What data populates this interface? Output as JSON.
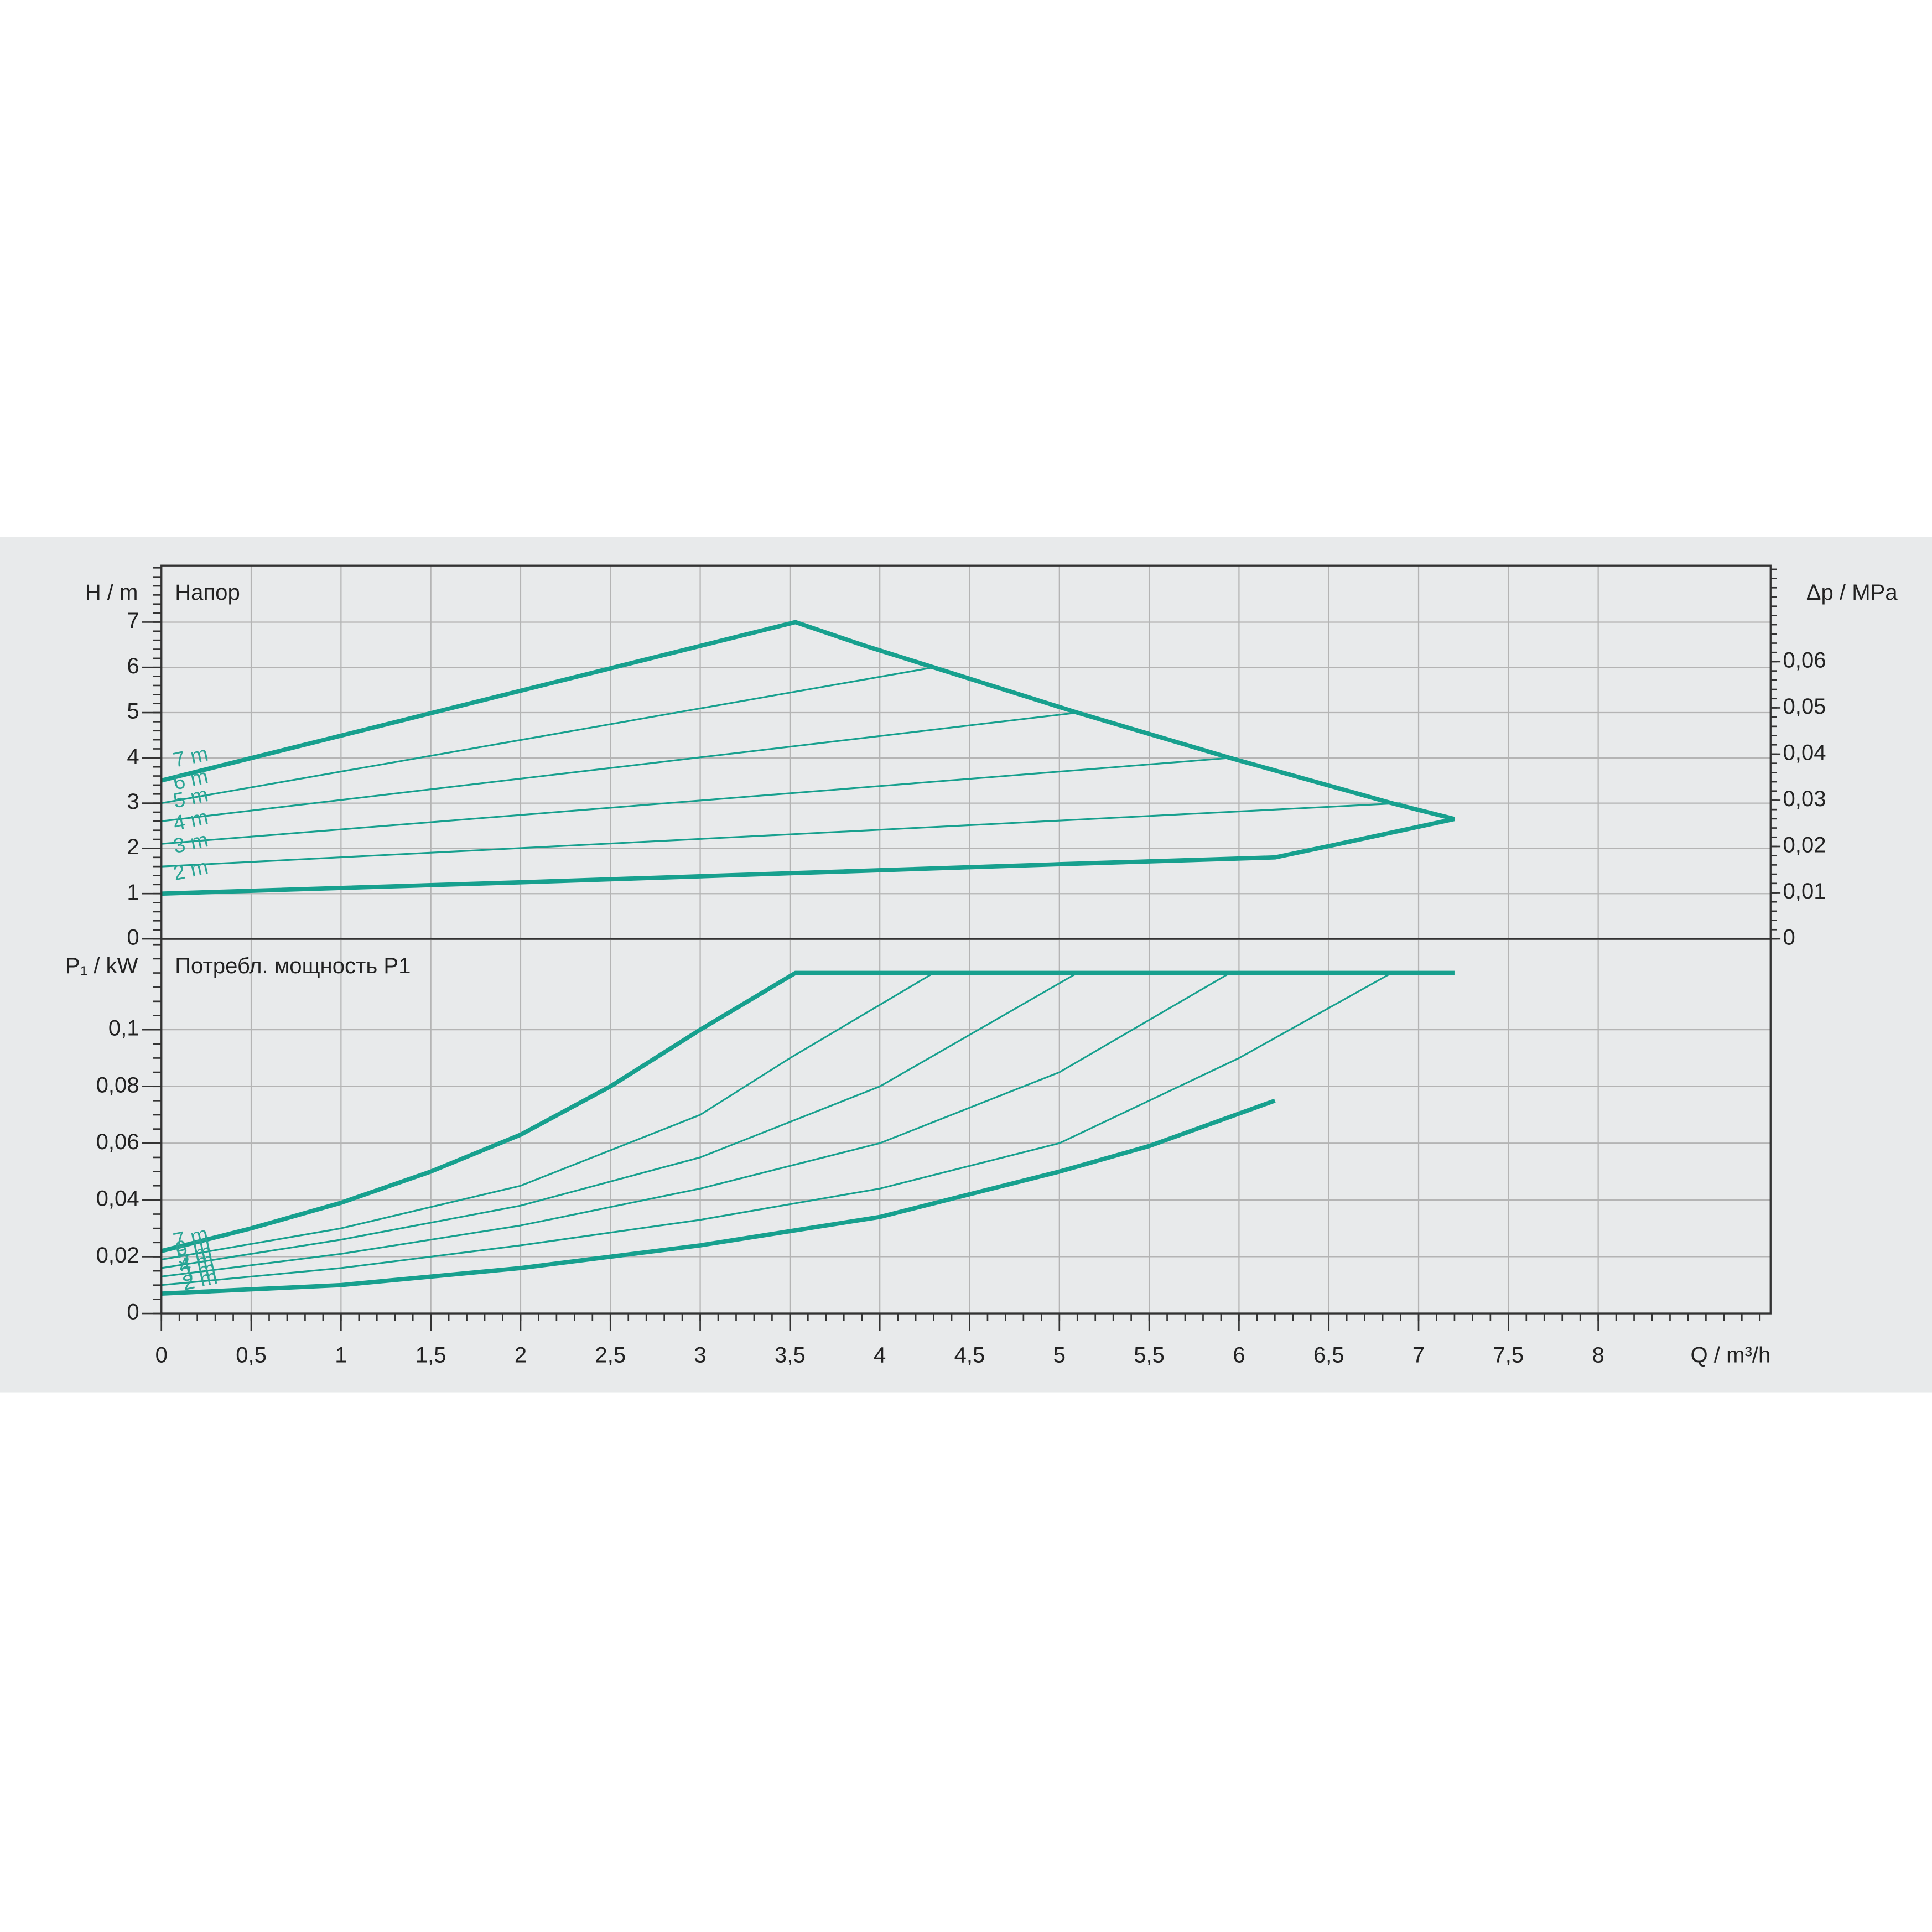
{
  "chart_data": [
    {
      "type": "line",
      "title": "Напор",
      "y_label": "H / m",
      "y2_label": "Δp / MPa",
      "xlim": [
        0,
        8.96
      ],
      "ylim": [
        0,
        8.25
      ],
      "yticks": [
        0,
        1,
        2,
        3,
        4,
        5,
        6,
        7
      ],
      "yminor": 0.2,
      "y2lim": [
        0,
        0.0808
      ],
      "y2ticks": [
        0,
        {
          "value": 0.01,
          "label": "0,01"
        },
        {
          "value": 0.02,
          "label": "0,02"
        },
        {
          "value": 0.03,
          "label": "0,03"
        },
        {
          "value": 0.04,
          "label": "0,04"
        },
        {
          "value": 0.05,
          "label": "0,05"
        },
        {
          "value": 0.06,
          "label": "0,06"
        }
      ],
      "y2minor": 0.002,
      "grid": true,
      "series": [
        {
          "name": "7 m",
          "color": "#17a08e",
          "width": 3.5,
          "x": [
            0,
            3.53,
            3.9,
            4.3,
            5.1,
            5.95,
            6.85,
            7.2
          ],
          "values": [
            3.5,
            7,
            6.5,
            6,
            5,
            4,
            3,
            2.65
          ]
        },
        {
          "name": "6 m",
          "color": "#17a08e",
          "width": 1.4,
          "x": [
            0,
            4.3
          ],
          "values": [
            3.0,
            6
          ]
        },
        {
          "name": "5 m",
          "color": "#17a08e",
          "width": 1.4,
          "x": [
            0,
            5.1
          ],
          "values": [
            2.6,
            5
          ]
        },
        {
          "name": "4 m",
          "color": "#17a08e",
          "width": 1.4,
          "x": [
            0,
            5.95
          ],
          "values": [
            2.1,
            4
          ]
        },
        {
          "name": "3 m",
          "color": "#17a08e",
          "width": 1.4,
          "x": [
            0,
            6.9
          ],
          "values": [
            1.6,
            3
          ]
        },
        {
          "name": "2 m",
          "color": "#17a08e",
          "width": 3.5,
          "x": [
            0,
            2,
            3.5,
            5,
            6.2,
            6.5,
            7.2
          ],
          "values": [
            1.0,
            1.25,
            1.45,
            1.65,
            1.8,
            2.05,
            2.65
          ]
        }
      ]
    },
    {
      "type": "line",
      "title": "Потребл. мощность P1",
      "y_label": "P₁ / kW",
      "x_label": "Q / m³/h",
      "xlim": [
        0,
        8.96
      ],
      "xticks": [
        0,
        {
          "value": 0.5,
          "label": "0,5"
        },
        1,
        {
          "value": 1.5,
          "label": "1,5"
        },
        2,
        {
          "value": 2.5,
          "label": "2,5"
        },
        3,
        {
          "value": 3.5,
          "label": "3,5"
        },
        4,
        {
          "value": 4.5,
          "label": "4,5"
        },
        5,
        {
          "value": 5.5,
          "label": "5,5"
        },
        6,
        {
          "value": 6.5,
          "label": "6,5"
        },
        7,
        {
          "value": 7.5,
          "label": "7,5"
        },
        8
      ],
      "xminor": 0.1,
      "ylim": [
        0,
        0.132
      ],
      "yticks": [
        0,
        {
          "value": 0.02,
          "label": "0,02"
        },
        {
          "value": 0.04,
          "label": "0,04"
        },
        {
          "value": 0.06,
          "label": "0,06"
        },
        {
          "value": 0.08,
          "label": "0,08"
        },
        {
          "value": 0.1,
          "label": "0,1"
        }
      ],
      "yminor": 0.005,
      "grid": true,
      "series": [
        {
          "name": "7 m",
          "color": "#17a08e",
          "width": 3.5,
          "x": [
            0,
            0.5,
            1,
            1.5,
            2,
            2.5,
            3,
            3.53,
            7.2
          ],
          "values": [
            0.022,
            0.03,
            0.039,
            0.05,
            0.063,
            0.08,
            0.1,
            0.12,
            0.12
          ]
        },
        {
          "name": "6 m",
          "color": "#17a08e",
          "width": 1.4,
          "x": [
            0,
            1,
            2,
            3,
            3.5,
            4.3
          ],
          "values": [
            0.019,
            0.03,
            0.045,
            0.07,
            0.09,
            0.12
          ]
        },
        {
          "name": "5 m",
          "color": "#17a08e",
          "width": 1.4,
          "x": [
            0,
            1,
            2,
            3,
            4,
            5.1
          ],
          "values": [
            0.016,
            0.026,
            0.038,
            0.055,
            0.08,
            0.12
          ]
        },
        {
          "name": "4 m",
          "color": "#17a08e",
          "width": 1.4,
          "x": [
            0,
            1,
            2,
            3,
            4,
            5,
            5.95
          ],
          "values": [
            0.013,
            0.021,
            0.031,
            0.044,
            0.06,
            0.085,
            0.12
          ]
        },
        {
          "name": "3 m",
          "color": "#17a08e",
          "width": 1.4,
          "x": [
            0,
            1,
            2,
            3,
            4,
            5,
            6,
            6.85
          ],
          "values": [
            0.01,
            0.016,
            0.024,
            0.033,
            0.044,
            0.06,
            0.09,
            0.12
          ]
        },
        {
          "name": "2 m",
          "color": "#17a08e",
          "width": 3.5,
          "x": [
            0,
            1,
            2,
            3,
            3.5,
            4,
            5,
            5.5,
            6.2
          ],
          "values": [
            0.007,
            0.01,
            0.016,
            0.024,
            0.029,
            0.034,
            0.05,
            0.059,
            0.075
          ]
        }
      ]
    }
  ]
}
